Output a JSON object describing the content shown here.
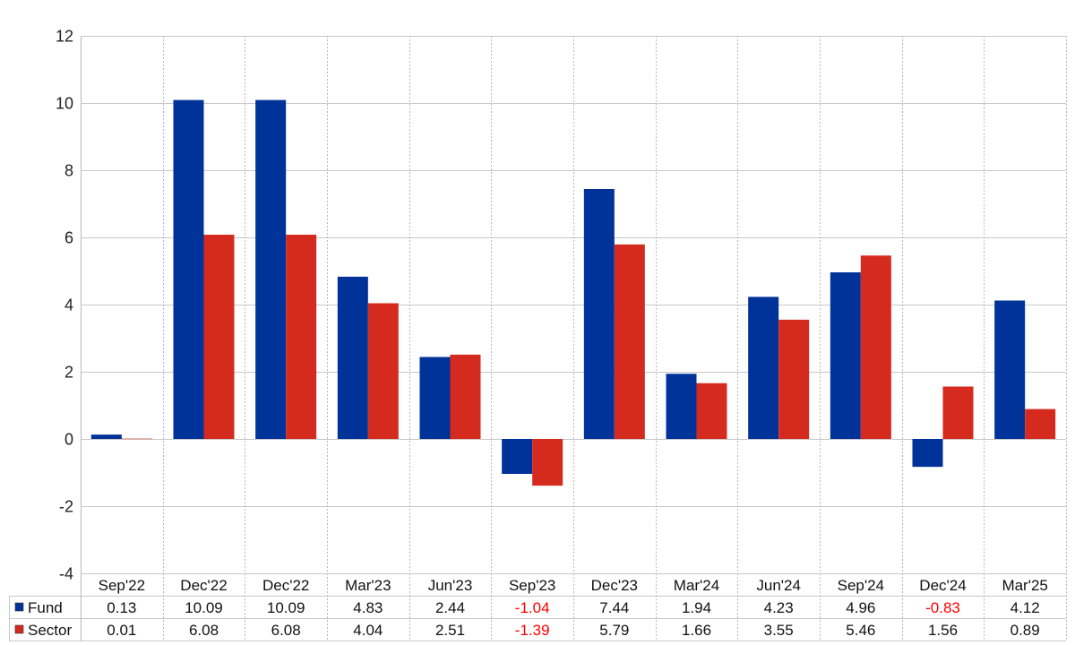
{
  "chart_data": {
    "type": "bar",
    "categories": [
      "Sep'22",
      "Dec'22",
      "Dec'22",
      "Mar'23",
      "Jun'23",
      "Sep'23",
      "Dec'23",
      "Mar'24",
      "Jun'24",
      "Sep'24",
      "Dec'24",
      "Mar'25"
    ],
    "series": [
      {
        "name": "Fund",
        "color": "#003399",
        "values": [
          0.13,
          10.09,
          10.09,
          4.83,
          2.44,
          -1.04,
          7.44,
          1.94,
          4.23,
          4.96,
          -0.83,
          4.12
        ],
        "labels": [
          "0.13",
          "10.09",
          "10.09",
          "4.83",
          "2.44",
          "-1.04",
          "7.44",
          "1.94",
          "4.23",
          "4.96",
          "-0.83",
          "4.12"
        ]
      },
      {
        "name": "Sector",
        "color": "#d52b1e",
        "values": [
          0.01,
          6.08,
          6.08,
          4.04,
          2.51,
          -1.39,
          5.79,
          1.66,
          3.55,
          5.46,
          1.56,
          0.89
        ],
        "labels": [
          "0.01",
          "6.08",
          "6.08",
          "4.04",
          "2.51",
          "-1.39",
          "5.79",
          "1.66",
          "3.55",
          "5.46",
          "1.56",
          "0.89"
        ]
      }
    ],
    "ylim": [
      -4,
      12
    ],
    "yticks": [
      -4,
      -2,
      0,
      2,
      4,
      6,
      8,
      10,
      12
    ],
    "ytick_labels": [
      "-4",
      "-2",
      "0",
      "2",
      "4",
      "6",
      "8",
      "10",
      "12"
    ],
    "title": "",
    "xlabel": "",
    "ylabel": "",
    "grid": true,
    "data_table": true,
    "negative_value_color": "#ff0000"
  }
}
